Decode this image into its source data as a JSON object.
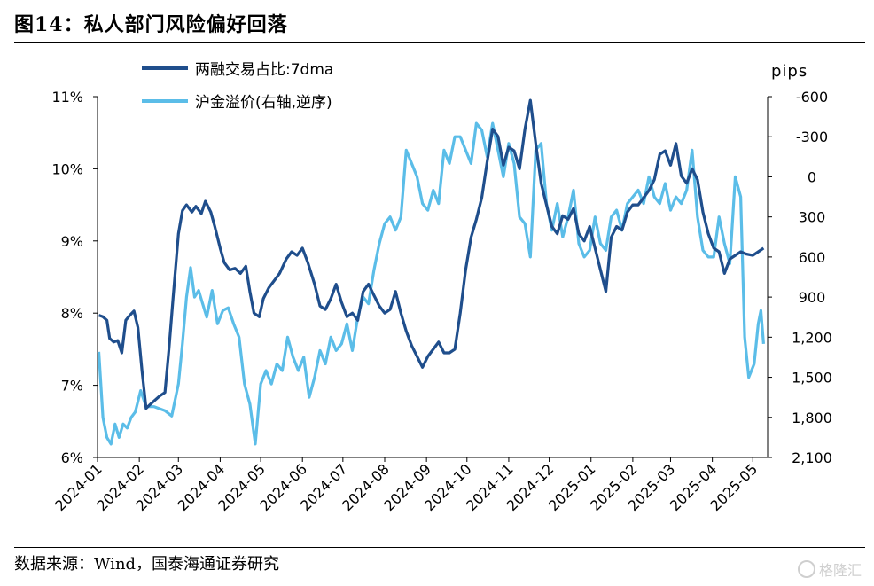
{
  "header": {
    "title": "图14：私人部门风险偏好回落"
  },
  "footer": {
    "source": "数据来源：Wind，国泰海通证券研究",
    "watermark": "格隆汇"
  },
  "chart_data": {
    "type": "line",
    "right_axis_unit": "pips",
    "x_ticks": [
      "2024-01",
      "2024-02",
      "2024-03",
      "2024-04",
      "2024-05",
      "2024-06",
      "2024-07",
      "2024-08",
      "2024-09",
      "2024-10",
      "2024-11",
      "2024-12",
      "2025-01",
      "2025-02",
      "2025-03",
      "2025-04",
      "2025-05"
    ],
    "left_axis": {
      "ylim": [
        6,
        11
      ],
      "ticks": [
        "6%",
        "7%",
        "8%",
        "9%",
        "10%",
        "11%"
      ]
    },
    "right_axis": {
      "ylim": [
        2100,
        -600
      ],
      "reversed": true,
      "ticks": [
        "-600",
        "-300",
        "0",
        "300",
        "600",
        "900",
        "1,200",
        "1,500",
        "1,800",
        "2,100"
      ]
    },
    "legend_position": "top-left",
    "colors": {
      "series1": "#1f4e8c",
      "series2": "#5bbde8"
    },
    "series": [
      {
        "name": "两融交易占比:7dma",
        "axis": "left",
        "points": [
          [
            "2024-01-02",
            7.97
          ],
          [
            "2024-01-05",
            7.95
          ],
          [
            "2024-01-08",
            7.9
          ],
          [
            "2024-01-10",
            7.65
          ],
          [
            "2024-01-13",
            7.6
          ],
          [
            "2024-01-16",
            7.62
          ],
          [
            "2024-01-19",
            7.45
          ],
          [
            "2024-01-22",
            7.9
          ],
          [
            "2024-01-25",
            7.97
          ],
          [
            "2024-01-28",
            8.03
          ],
          [
            "2024-01-31",
            7.8
          ],
          [
            "2024-02-03",
            7.2
          ],
          [
            "2024-02-06",
            6.68
          ],
          [
            "2024-02-10",
            6.75
          ],
          [
            "2024-02-16",
            6.85
          ],
          [
            "2024-02-20",
            6.9
          ],
          [
            "2024-02-23",
            7.5
          ],
          [
            "2024-02-26",
            8.2
          ],
          [
            "2024-03-01",
            9.1
          ],
          [
            "2024-03-04",
            9.42
          ],
          [
            "2024-03-07",
            9.5
          ],
          [
            "2024-03-11",
            9.4
          ],
          [
            "2024-03-14",
            9.48
          ],
          [
            "2024-03-18",
            9.38
          ],
          [
            "2024-03-21",
            9.55
          ],
          [
            "2024-03-25",
            9.4
          ],
          [
            "2024-03-28",
            9.2
          ],
          [
            "2024-04-01",
            8.9
          ],
          [
            "2024-04-04",
            8.7
          ],
          [
            "2024-04-08",
            8.6
          ],
          [
            "2024-04-12",
            8.62
          ],
          [
            "2024-04-16",
            8.55
          ],
          [
            "2024-04-20",
            8.65
          ],
          [
            "2024-04-23",
            8.3
          ],
          [
            "2024-04-26",
            8.0
          ],
          [
            "2024-04-30",
            7.95
          ],
          [
            "2024-05-03",
            8.2
          ],
          [
            "2024-05-07",
            8.35
          ],
          [
            "2024-05-11",
            8.45
          ],
          [
            "2024-05-15",
            8.55
          ],
          [
            "2024-05-20",
            8.75
          ],
          [
            "2024-05-24",
            8.85
          ],
          [
            "2024-05-28",
            8.8
          ],
          [
            "2024-06-01",
            8.9
          ],
          [
            "2024-06-05",
            8.7
          ],
          [
            "2024-06-10",
            8.4
          ],
          [
            "2024-06-14",
            8.1
          ],
          [
            "2024-06-18",
            8.05
          ],
          [
            "2024-06-22",
            8.2
          ],
          [
            "2024-06-26",
            8.4
          ],
          [
            "2024-06-30",
            8.15
          ],
          [
            "2024-07-04",
            7.95
          ],
          [
            "2024-07-08",
            8.0
          ],
          [
            "2024-07-12",
            7.9
          ],
          [
            "2024-07-16",
            8.3
          ],
          [
            "2024-07-20",
            8.4
          ],
          [
            "2024-07-24",
            8.25
          ],
          [
            "2024-07-28",
            8.1
          ],
          [
            "2024-08-01",
            8.0
          ],
          [
            "2024-08-05",
            8.05
          ],
          [
            "2024-08-09",
            8.3
          ],
          [
            "2024-08-13",
            8.0
          ],
          [
            "2024-08-17",
            7.75
          ],
          [
            "2024-08-21",
            7.55
          ],
          [
            "2024-08-25",
            7.4
          ],
          [
            "2024-08-29",
            7.25
          ],
          [
            "2024-09-02",
            7.4
          ],
          [
            "2024-09-06",
            7.5
          ],
          [
            "2024-09-10",
            7.6
          ],
          [
            "2024-09-14",
            7.45
          ],
          [
            "2024-09-18",
            7.45
          ],
          [
            "2024-09-22",
            7.5
          ],
          [
            "2024-09-26",
            8.0
          ],
          [
            "2024-09-30",
            8.6
          ],
          [
            "2024-10-04",
            9.05
          ],
          [
            "2024-10-08",
            9.3
          ],
          [
            "2024-10-12",
            9.6
          ],
          [
            "2024-10-16",
            10.1
          ],
          [
            "2024-10-20",
            10.55
          ],
          [
            "2024-10-24",
            10.45
          ],
          [
            "2024-10-28",
            10.05
          ],
          [
            "2024-11-01",
            10.3
          ],
          [
            "2024-11-05",
            10.25
          ],
          [
            "2024-11-09",
            10.0
          ],
          [
            "2024-11-13",
            10.55
          ],
          [
            "2024-11-17",
            10.95
          ],
          [
            "2024-11-21",
            10.35
          ],
          [
            "2024-11-25",
            9.8
          ],
          [
            "2024-11-29",
            9.5
          ],
          [
            "2024-12-03",
            9.2
          ],
          [
            "2024-12-07",
            9.1
          ],
          [
            "2024-12-11",
            9.35
          ],
          [
            "2024-12-15",
            9.3
          ],
          [
            "2024-12-19",
            9.45
          ],
          [
            "2024-12-23",
            9.1
          ],
          [
            "2024-12-27",
            9.0
          ],
          [
            "2024-12-31",
            9.2
          ],
          [
            "2025-01-04",
            8.9
          ],
          [
            "2025-01-08",
            8.6
          ],
          [
            "2025-01-12",
            8.3
          ],
          [
            "2025-01-16",
            9.05
          ],
          [
            "2025-01-20",
            9.2
          ],
          [
            "2025-01-24",
            9.15
          ],
          [
            "2025-01-28",
            9.4
          ],
          [
            "2025-02-01",
            9.5
          ],
          [
            "2025-02-05",
            9.5
          ],
          [
            "2025-02-09",
            9.6
          ],
          [
            "2025-02-13",
            9.7
          ],
          [
            "2025-02-17",
            9.85
          ],
          [
            "2025-02-21",
            10.2
          ],
          [
            "2025-02-25",
            10.25
          ],
          [
            "2025-03-01",
            10.05
          ],
          [
            "2025-03-05",
            10.35
          ],
          [
            "2025-03-09",
            9.9
          ],
          [
            "2025-03-13",
            9.8
          ],
          [
            "2025-03-17",
            10.0
          ],
          [
            "2025-03-21",
            9.85
          ],
          [
            "2025-03-25",
            9.4
          ],
          [
            "2025-03-29",
            9.1
          ],
          [
            "2025-04-02",
            8.9
          ],
          [
            "2025-04-06",
            8.85
          ],
          [
            "2025-04-10",
            8.55
          ],
          [
            "2025-04-14",
            8.75
          ],
          [
            "2025-04-18",
            8.8
          ],
          [
            "2025-04-22",
            8.85
          ],
          [
            "2025-04-26",
            8.82
          ],
          [
            "2025-05-01",
            8.8
          ],
          [
            "2025-05-05",
            8.85
          ],
          [
            "2025-05-09",
            8.9
          ]
        ]
      },
      {
        "name": "沪金溢价(右轴,逆序)",
        "axis": "right",
        "points": [
          [
            "2024-01-02",
            1310
          ],
          [
            "2024-01-05",
            1800
          ],
          [
            "2024-01-08",
            1950
          ],
          [
            "2024-01-11",
            2000
          ],
          [
            "2024-01-14",
            1850
          ],
          [
            "2024-01-17",
            1950
          ],
          [
            "2024-01-20",
            1850
          ],
          [
            "2024-01-23",
            1880
          ],
          [
            "2024-01-26",
            1800
          ],
          [
            "2024-01-29",
            1760
          ],
          [
            "2024-02-02",
            1600
          ],
          [
            "2024-02-06",
            1720
          ],
          [
            "2024-02-12",
            1720
          ],
          [
            "2024-02-20",
            1750
          ],
          [
            "2024-02-25",
            1790
          ],
          [
            "2024-03-01",
            1550
          ],
          [
            "2024-03-04",
            1250
          ],
          [
            "2024-03-07",
            900
          ],
          [
            "2024-03-10",
            680
          ],
          [
            "2024-03-13",
            900
          ],
          [
            "2024-03-16",
            850
          ],
          [
            "2024-03-19",
            950
          ],
          [
            "2024-03-22",
            1050
          ],
          [
            "2024-03-26",
            850
          ],
          [
            "2024-03-30",
            1100
          ],
          [
            "2024-04-03",
            1000
          ],
          [
            "2024-04-07",
            980
          ],
          [
            "2024-04-11",
            1100
          ],
          [
            "2024-04-15",
            1200
          ],
          [
            "2024-04-19",
            1550
          ],
          [
            "2024-04-23",
            1700
          ],
          [
            "2024-04-27",
            2000
          ],
          [
            "2024-05-01",
            1550
          ],
          [
            "2024-05-05",
            1450
          ],
          [
            "2024-05-09",
            1550
          ],
          [
            "2024-05-13",
            1400
          ],
          [
            "2024-05-17",
            1450
          ],
          [
            "2024-05-21",
            1200
          ],
          [
            "2024-05-25",
            1350
          ],
          [
            "2024-05-29",
            1450
          ],
          [
            "2024-06-02",
            1350
          ],
          [
            "2024-06-06",
            1650
          ],
          [
            "2024-06-10",
            1500
          ],
          [
            "2024-06-14",
            1300
          ],
          [
            "2024-06-18",
            1400
          ],
          [
            "2024-06-22",
            1200
          ],
          [
            "2024-06-26",
            1300
          ],
          [
            "2024-06-30",
            1250
          ],
          [
            "2024-07-04",
            1100
          ],
          [
            "2024-07-08",
            1300
          ],
          [
            "2024-07-12",
            1050
          ],
          [
            "2024-07-16",
            900
          ],
          [
            "2024-07-20",
            950
          ],
          [
            "2024-07-24",
            700
          ],
          [
            "2024-07-28",
            500
          ],
          [
            "2024-08-01",
            350
          ],
          [
            "2024-08-05",
            300
          ],
          [
            "2024-08-09",
            400
          ],
          [
            "2024-08-13",
            300
          ],
          [
            "2024-08-17",
            -200
          ],
          [
            "2024-08-21",
            -100
          ],
          [
            "2024-08-25",
            0
          ],
          [
            "2024-08-29",
            200
          ],
          [
            "2024-09-02",
            250
          ],
          [
            "2024-09-06",
            100
          ],
          [
            "2024-09-10",
            200
          ],
          [
            "2024-09-14",
            -200
          ],
          [
            "2024-09-18",
            -100
          ],
          [
            "2024-09-22",
            -300
          ],
          [
            "2024-09-26",
            -300
          ],
          [
            "2024-09-30",
            -200
          ],
          [
            "2024-10-04",
            -100
          ],
          [
            "2024-10-08",
            -400
          ],
          [
            "2024-10-12",
            -350
          ],
          [
            "2024-10-16",
            -150
          ],
          [
            "2024-10-20",
            -400
          ],
          [
            "2024-10-24",
            -200
          ],
          [
            "2024-10-28",
            0
          ],
          [
            "2024-11-01",
            -250
          ],
          [
            "2024-11-05",
            -100
          ],
          [
            "2024-11-09",
            300
          ],
          [
            "2024-11-13",
            350
          ],
          [
            "2024-11-17",
            600
          ],
          [
            "2024-11-21",
            -200
          ],
          [
            "2024-11-25",
            -250
          ],
          [
            "2024-11-29",
            200
          ],
          [
            "2024-12-03",
            400
          ],
          [
            "2024-12-07",
            200
          ],
          [
            "2024-12-11",
            450
          ],
          [
            "2024-12-15",
            300
          ],
          [
            "2024-12-19",
            100
          ],
          [
            "2024-12-23",
            500
          ],
          [
            "2024-12-27",
            600
          ],
          [
            "2024-12-31",
            550
          ],
          [
            "2025-01-04",
            300
          ],
          [
            "2025-01-08",
            500
          ],
          [
            "2025-01-12",
            550
          ],
          [
            "2025-01-16",
            300
          ],
          [
            "2025-01-20",
            250
          ],
          [
            "2025-01-24",
            400
          ],
          [
            "2025-01-28",
            200
          ],
          [
            "2025-02-01",
            150
          ],
          [
            "2025-02-05",
            100
          ],
          [
            "2025-02-09",
            200
          ],
          [
            "2025-02-13",
            0
          ],
          [
            "2025-02-17",
            150
          ],
          [
            "2025-02-21",
            200
          ],
          [
            "2025-02-25",
            50
          ],
          [
            "2025-03-01",
            250
          ],
          [
            "2025-03-05",
            150
          ],
          [
            "2025-03-09",
            200
          ],
          [
            "2025-03-13",
            100
          ],
          [
            "2025-03-17",
            -200
          ],
          [
            "2025-03-21",
            300
          ],
          [
            "2025-03-25",
            550
          ],
          [
            "2025-03-29",
            600
          ],
          [
            "2025-04-02",
            600
          ],
          [
            "2025-04-06",
            300
          ],
          [
            "2025-04-10",
            500
          ],
          [
            "2025-04-14",
            650
          ],
          [
            "2025-04-18",
            0
          ],
          [
            "2025-04-22",
            150
          ],
          [
            "2025-04-25",
            1200
          ],
          [
            "2025-04-28",
            1500
          ],
          [
            "2025-05-02",
            1400
          ],
          [
            "2025-05-05",
            1100
          ],
          [
            "2025-05-07",
            1000
          ],
          [
            "2025-05-09",
            1250
          ]
        ]
      }
    ]
  }
}
